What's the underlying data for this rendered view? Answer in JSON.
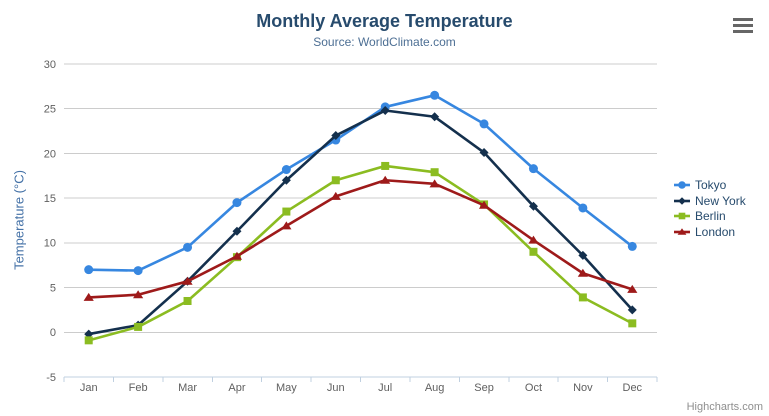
{
  "chart_data": {
    "type": "line",
    "title": "Monthly Average Temperature",
    "subtitle": "Source: WorldClimate.com",
    "ylabel": "Temperature (°C)",
    "ylim": [
      -5,
      30
    ],
    "yticks": [
      -5,
      0,
      5,
      10,
      15,
      20,
      25,
      30
    ],
    "grid": true,
    "legend_position": "right",
    "categories": [
      "Jan",
      "Feb",
      "Mar",
      "Apr",
      "May",
      "Jun",
      "Jul",
      "Aug",
      "Sep",
      "Oct",
      "Nov",
      "Dec"
    ],
    "series": [
      {
        "name": "Tokyo",
        "color": "#3787e0",
        "marker": "circle",
        "values": [
          7.0,
          6.9,
          9.5,
          14.5,
          18.2,
          21.5,
          25.2,
          26.5,
          23.3,
          18.3,
          13.9,
          9.6
        ]
      },
      {
        "name": "New York",
        "color": "#14304d",
        "marker": "diamond",
        "values": [
          -0.2,
          0.8,
          5.7,
          11.3,
          17.0,
          22.0,
          24.8,
          24.1,
          20.1,
          14.1,
          8.6,
          2.5
        ]
      },
      {
        "name": "Berlin",
        "color": "#8bbc21",
        "marker": "square",
        "values": [
          -0.9,
          0.6,
          3.5,
          8.4,
          13.5,
          17.0,
          18.6,
          17.9,
          14.3,
          9.0,
          3.9,
          1.0
        ]
      },
      {
        "name": "London",
        "color": "#9e1a1a",
        "marker": "triangle",
        "values": [
          3.9,
          4.2,
          5.7,
          8.5,
          11.9,
          15.2,
          17.0,
          16.6,
          14.2,
          10.3,
          6.6,
          4.8
        ]
      }
    ],
    "colors": {
      "gridline": "#cccccc",
      "axis_line": "#c0d0e0",
      "tick_label": "#606060",
      "title": "#274b6d",
      "subtitle": "#4d6f94",
      "y_axis_title": "#4572a7"
    }
  },
  "export_menu": {
    "icon": "hamburger-icon"
  },
  "credits": {
    "label": "Highcharts.com"
  }
}
